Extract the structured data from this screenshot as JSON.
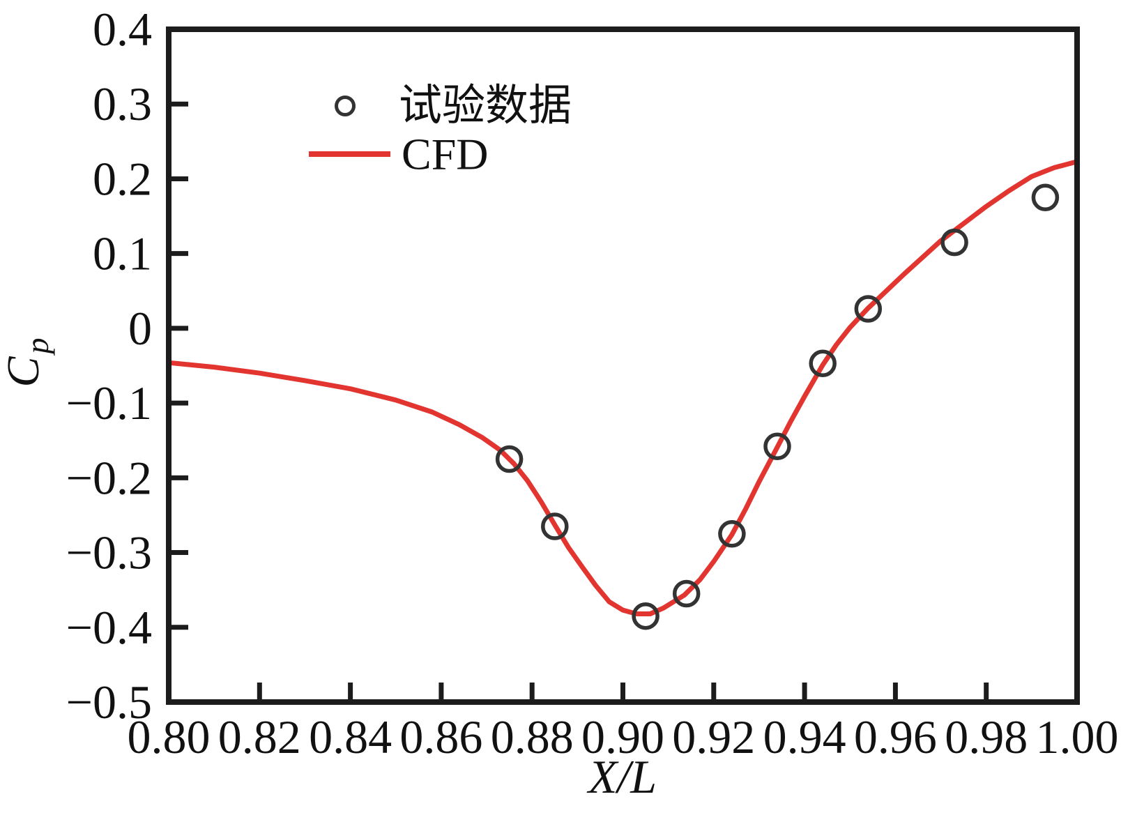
{
  "figure": {
    "background": "#ffffff",
    "axis_color": "#1c1c1c"
  },
  "chart_data": {
    "type": "line+scatter",
    "title": "",
    "xlabel": "X/L",
    "ylabel": "C",
    "ylabel_sub": "p",
    "xlim": [
      0.8,
      1.0
    ],
    "ylim": [
      -0.5,
      0.4
    ],
    "grid": false,
    "x_tick_values": [
      0.8,
      0.82,
      0.84,
      0.86,
      0.88,
      0.9,
      0.92,
      0.94,
      0.96,
      0.98,
      1.0
    ],
    "x_tick_labels": [
      "0.80",
      "0.82",
      "0.84",
      "0.86",
      "0.88",
      "0.90",
      "0.92",
      "0.94",
      "0.96",
      "0.98",
      "1.00"
    ],
    "y_tick_values": [
      0.4,
      0.3,
      0.2,
      0.1,
      0,
      -0.1,
      -0.2,
      -0.3,
      -0.4,
      -0.5
    ],
    "y_tick_labels": [
      "0.4",
      "0.3",
      "0.2",
      "0.1",
      "0",
      "−0.1",
      "−0.2",
      "−0.3",
      "−0.4",
      "−0.5"
    ],
    "legend": {
      "position": "upper-left-inside",
      "items": [
        {
          "label": "试验数据",
          "marker": "open-circle",
          "color": "#333333"
        },
        {
          "label": "CFD",
          "marker": "line",
          "color": "#e23530"
        }
      ]
    },
    "series": [
      {
        "name": "试验数据",
        "type": "scatter",
        "marker": "open-circle",
        "color": "#333333",
        "points": [
          [
            0.875,
            -0.175
          ],
          [
            0.885,
            -0.265
          ],
          [
            0.905,
            -0.385
          ],
          [
            0.914,
            -0.355
          ],
          [
            0.924,
            -0.275
          ],
          [
            0.934,
            -0.158
          ],
          [
            0.944,
            -0.047
          ],
          [
            0.954,
            0.026
          ],
          [
            0.973,
            0.115
          ],
          [
            0.993,
            0.175
          ]
        ]
      },
      {
        "name": "CFD",
        "type": "line",
        "color": "#e23530",
        "points": [
          [
            0.8,
            -0.046
          ],
          [
            0.81,
            -0.052
          ],
          [
            0.82,
            -0.06
          ],
          [
            0.83,
            -0.07
          ],
          [
            0.84,
            -0.081
          ],
          [
            0.85,
            -0.096
          ],
          [
            0.858,
            -0.112
          ],
          [
            0.864,
            -0.129
          ],
          [
            0.869,
            -0.146
          ],
          [
            0.873,
            -0.163
          ],
          [
            0.876,
            -0.181
          ],
          [
            0.879,
            -0.204
          ],
          [
            0.882,
            -0.232
          ],
          [
            0.885,
            -0.263
          ],
          [
            0.888,
            -0.293
          ],
          [
            0.891,
            -0.319
          ],
          [
            0.894,
            -0.344
          ],
          [
            0.897,
            -0.366
          ],
          [
            0.9,
            -0.377
          ],
          [
            0.903,
            -0.382
          ],
          [
            0.906,
            -0.382
          ],
          [
            0.909,
            -0.374
          ],
          [
            0.9135,
            -0.357
          ],
          [
            0.917,
            -0.336
          ],
          [
            0.92,
            -0.312
          ],
          [
            0.924,
            -0.276
          ],
          [
            0.927,
            -0.242
          ],
          [
            0.93,
            -0.205
          ],
          [
            0.934,
            -0.159
          ],
          [
            0.937,
            -0.124
          ],
          [
            0.94,
            -0.091
          ],
          [
            0.944,
            -0.049
          ],
          [
            0.947,
            -0.022
          ],
          [
            0.95,
            0.001
          ],
          [
            0.954,
            0.027
          ],
          [
            0.958,
            0.05
          ],
          [
            0.962,
            0.073
          ],
          [
            0.966,
            0.095
          ],
          [
            0.97,
            0.117
          ],
          [
            0.975,
            0.14
          ],
          [
            0.98,
            0.163
          ],
          [
            0.985,
            0.184
          ],
          [
            0.99,
            0.203
          ],
          [
            0.995,
            0.215
          ],
          [
            1.0,
            0.223
          ]
        ]
      }
    ]
  }
}
